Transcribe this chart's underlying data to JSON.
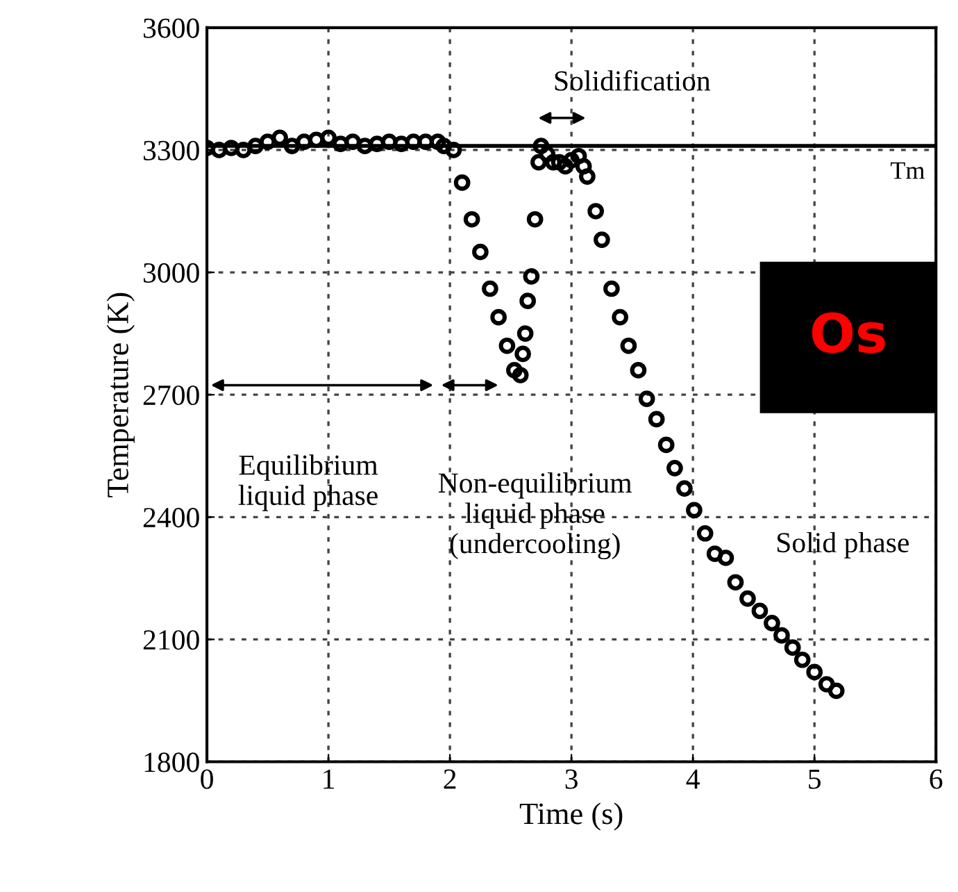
{
  "chart_data": {
    "type": "scatter",
    "xlabel": "Time (s)",
    "ylabel": "Temperature (K)",
    "xlim": [
      0,
      6
    ],
    "xticks": [
      0,
      1,
      2,
      3,
      4,
      5,
      6
    ],
    "ylim": [
      1800,
      3600
    ],
    "yticks": [
      1800,
      2100,
      2400,
      2700,
      3000,
      3300,
      3600
    ],
    "grid": true,
    "marker": "circle",
    "series": [
      {
        "color": "#000000",
        "x": [
          0,
          0.1,
          0.2,
          0.3,
          0.4,
          0.5,
          0.6,
          0.7,
          0.8,
          0.9,
          1.0,
          1.1,
          1.2,
          1.3,
          1.4,
          1.5,
          1.6,
          1.7,
          1.8,
          1.9,
          1.95,
          2.03,
          2.1,
          2.18,
          2.25,
          2.33,
          2.4,
          2.47,
          2.53,
          2.58,
          2.6,
          2.62,
          2.64,
          2.67,
          2.7,
          2.73,
          2.75,
          2.8,
          2.85,
          2.9,
          2.95,
          3.0,
          3.06,
          3.1,
          3.13,
          3.2,
          3.25,
          3.33,
          3.4,
          3.47,
          3.55,
          3.62,
          3.7,
          3.78,
          3.85,
          3.93,
          4.01,
          4.1,
          4.18,
          4.27,
          4.35,
          4.45,
          4.55,
          4.65,
          4.73,
          4.82,
          4.9,
          5.0,
          5.1,
          5.18
        ],
        "values": [
          3305,
          3300,
          3305,
          3300,
          3310,
          3320,
          3330,
          3310,
          3320,
          3325,
          3330,
          3315,
          3320,
          3310,
          3315,
          3320,
          3315,
          3320,
          3320,
          3320,
          3310,
          3300,
          3220,
          3130,
          3050,
          2960,
          2890,
          2820,
          2760,
          2748,
          2800,
          2850,
          2930,
          2990,
          3130,
          3270,
          3310,
          3290,
          3270,
          3270,
          3260,
          3275,
          3285,
          3260,
          3235,
          3150,
          3080,
          2960,
          2890,
          2820,
          2760,
          2690,
          2640,
          2577,
          2520,
          2470,
          2417,
          2360,
          2310,
          2300,
          2240,
          2200,
          2170,
          2140,
          2110,
          2080,
          2050,
          2020,
          1990,
          1974
        ]
      }
    ],
    "ref_lines": [
      {
        "axis": "y",
        "value": 3310,
        "label": "Tm",
        "color": "#000000",
        "line_style": "solid"
      }
    ],
    "annotations": [
      "Solidification",
      "Equilibrium\nliquid phase",
      "Non-equilibrium\nliquid phase\n(undercooling)",
      "Solid phase",
      "Os"
    ]
  }
}
